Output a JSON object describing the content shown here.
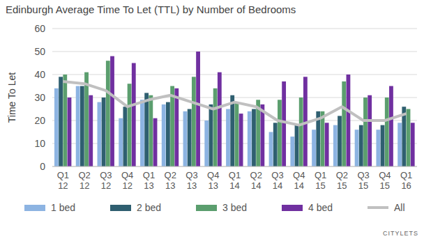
{
  "chart_data": {
    "type": "bar",
    "title": "Edinburgh Average Time To Let (TTL) by Number of Bedrooms",
    "y_label": "Time To Let",
    "annotations": [
      "CITYLETS"
    ],
    "categories": [
      "Q1 12",
      "Q2 12",
      "Q3 12",
      "Q4 12",
      "Q1 13",
      "Q2 13",
      "Q3 13",
      "Q4 13",
      "Q1 14",
      "Q2 14",
      "Q3 14",
      "Q4 14",
      "Q1 15",
      "Q2 15",
      "Q3 15",
      "Q4 15",
      "Q1 16"
    ],
    "series": [
      {
        "name": "1 bed",
        "color": "#8db4e2",
        "type": "bar",
        "values": [
          34,
          35,
          28,
          21,
          29,
          27,
          24,
          20,
          25,
          24,
          15,
          13,
          16,
          18,
          16,
          16,
          19
        ]
      },
      {
        "name": "2 bed",
        "color": "#2f5f70",
        "type": "bar",
        "values": [
          39,
          35,
          30,
          26,
          32,
          28,
          25,
          27,
          31,
          25,
          19,
          18,
          24,
          22,
          18,
          18,
          26
        ]
      },
      {
        "name": "3 bed",
        "color": "#5b9e6e",
        "type": "bar",
        "values": [
          40,
          41,
          46,
          36,
          31,
          35,
          39,
          34,
          28,
          29,
          29,
          30,
          24,
          37,
          30,
          30,
          25
        ]
      },
      {
        "name": "4 bed",
        "color": "#7030a0",
        "type": "bar",
        "values": [
          30,
          31,
          48,
          45,
          21,
          34,
          50,
          41,
          23,
          27,
          37,
          39,
          19,
          40,
          31,
          35,
          19
        ]
      },
      {
        "name": "All",
        "color": "#c0c0c0",
        "type": "line",
        "values": [
          37,
          36,
          33,
          26,
          29,
          31,
          28,
          25,
          28,
          26,
          20,
          18,
          21,
          26,
          20,
          20,
          23
        ]
      }
    ],
    "ylim": [
      0,
      60
    ],
    "yticks": [
      0,
      10,
      20,
      30,
      40,
      50,
      60
    ],
    "grid": true,
    "legend": "bottom"
  }
}
